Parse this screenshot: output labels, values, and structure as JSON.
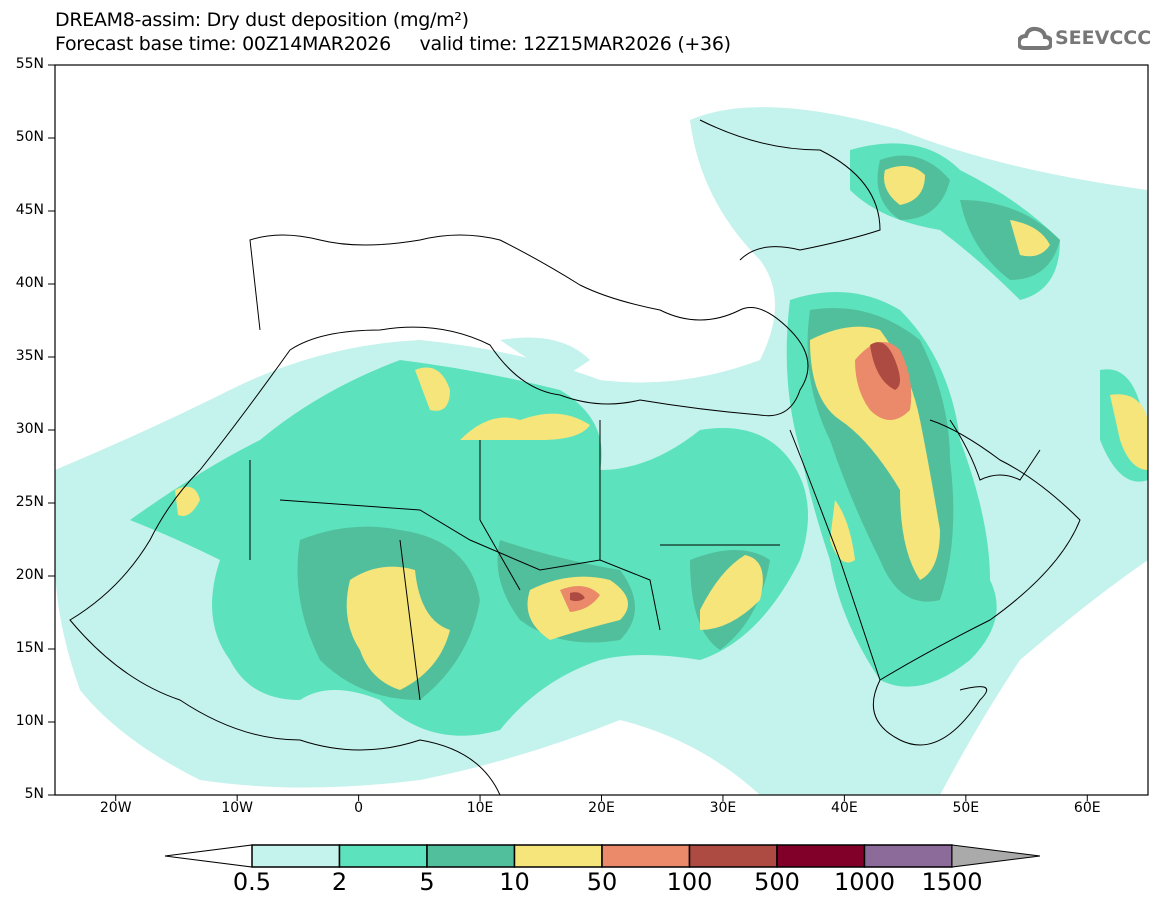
{
  "title": {
    "line1": "DREAM8-assim: Dry dust deposition (mg/m²)",
    "line2": "Forecast base time: 00Z14MAR2026     valid time: 12Z15MAR2026 (+36)"
  },
  "logo": {
    "text": "SEEVCCC",
    "icon": "cloud-icon"
  },
  "axes": {
    "lat_labels": [
      "55N",
      "50N",
      "45N",
      "40N",
      "35N",
      "30N",
      "25N",
      "20N",
      "15N",
      "10N",
      "5N"
    ],
    "lon_labels": [
      "20W",
      "10W",
      "0",
      "10E",
      "20E",
      "30E",
      "40E",
      "50E",
      "60E"
    ],
    "lon_range": [
      -25,
      65
    ],
    "lat_range": [
      5,
      55
    ]
  },
  "colorbar": {
    "levels": [
      "0.5",
      "2",
      "5",
      "10",
      "50",
      "100",
      "500",
      "1000",
      "1500"
    ],
    "colors": [
      "#c4f2ec",
      "#5ce3bd",
      "#52bf9c",
      "#f5e57a",
      "#ea8a6a",
      "#ad4b42",
      "#80002a",
      "#8c6a9a"
    ],
    "under_color": "#ffffff",
    "over_color": "#aaaaaa"
  }
}
